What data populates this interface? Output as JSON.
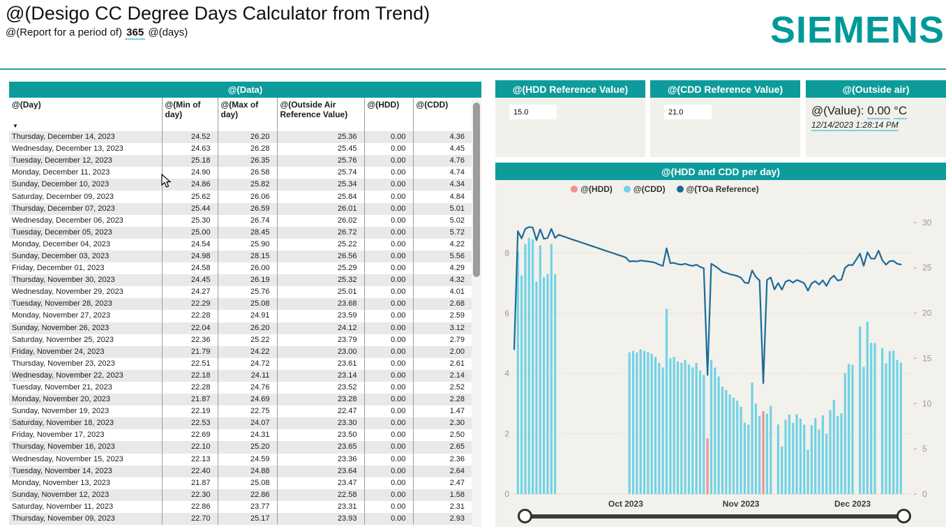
{
  "header": {
    "title": "@(Desigo CC Degree Days Calculator from Trend)",
    "report_period_prefix": "@(Report for a period of)",
    "report_period_value": "365",
    "report_period_suffix": "@(days)",
    "brand": "SIEMENS"
  },
  "colors": {
    "teal": "#0d9b9b",
    "brand_teal": "#009999",
    "hdd": "#f28f8f",
    "cdd": "#72d2e6",
    "toa_line": "#1a6a99"
  },
  "data_table": {
    "title": "@(Data)",
    "columns": [
      "@(Day)",
      "@(Min of day)",
      "@(Max of day)",
      "@(Outside Air Reference Value)",
      "@(HDD)",
      "@(CDD)"
    ],
    "sorted_column": "@(Day)",
    "rows": [
      [
        "Thursday, December 14, 2023",
        "24.52",
        "26.20",
        "25.36",
        "0.00",
        "4.36"
      ],
      [
        "Wednesday, December 13, 2023",
        "24.63",
        "26.28",
        "25.45",
        "0.00",
        "4.45"
      ],
      [
        "Tuesday, December 12, 2023",
        "25.18",
        "26.35",
        "25.76",
        "0.00",
        "4.76"
      ],
      [
        "Monday, December 11, 2023",
        "24.90",
        "26.58",
        "25.74",
        "0.00",
        "4.74"
      ],
      [
        "Sunday, December 10, 2023",
        "24.86",
        "25.82",
        "25.34",
        "0.00",
        "4.34"
      ],
      [
        "Saturday, December 09, 2023",
        "25.62",
        "26.06",
        "25.84",
        "0.00",
        "4.84"
      ],
      [
        "Thursday, December 07, 2023",
        "25.44",
        "26.59",
        "26.01",
        "0.00",
        "5.01"
      ],
      [
        "Wednesday, December 06, 2023",
        "25.30",
        "26.74",
        "26.02",
        "0.00",
        "5.02"
      ],
      [
        "Tuesday, December 05, 2023",
        "25.00",
        "28.45",
        "26.72",
        "0.00",
        "5.72"
      ],
      [
        "Monday, December 04, 2023",
        "24.54",
        "25.90",
        "25.22",
        "0.00",
        "4.22"
      ],
      [
        "Sunday, December 03, 2023",
        "24.98",
        "28.15",
        "26.56",
        "0.00",
        "5.56"
      ],
      [
        "Friday, December 01, 2023",
        "24.58",
        "26.00",
        "25.29",
        "0.00",
        "4.29"
      ],
      [
        "Thursday, November 30, 2023",
        "24.45",
        "26.19",
        "25.32",
        "0.00",
        "4.32"
      ],
      [
        "Wednesday, November 29, 2023",
        "24.27",
        "25.76",
        "25.01",
        "0.00",
        "4.01"
      ],
      [
        "Tuesday, November 28, 2023",
        "22.29",
        "25.08",
        "23.68",
        "0.00",
        "2.68"
      ],
      [
        "Monday, November 27, 2023",
        "22.28",
        "24.91",
        "23.59",
        "0.00",
        "2.59"
      ],
      [
        "Sunday, November 26, 2023",
        "22.04",
        "26.20",
        "24.12",
        "0.00",
        "3.12"
      ],
      [
        "Saturday, November 25, 2023",
        "22.36",
        "25.22",
        "23.79",
        "0.00",
        "2.79"
      ],
      [
        "Friday, November 24, 2023",
        "21.79",
        "24.22",
        "23.00",
        "0.00",
        "2.00"
      ],
      [
        "Thursday, November 23, 2023",
        "22.51",
        "24.72",
        "23.61",
        "0.00",
        "2.61"
      ],
      [
        "Wednesday, November 22, 2023",
        "22.18",
        "24.11",
        "23.14",
        "0.00",
        "2.14"
      ],
      [
        "Tuesday, November 21, 2023",
        "22.28",
        "24.76",
        "23.52",
        "0.00",
        "2.52"
      ],
      [
        "Monday, November 20, 2023",
        "21.87",
        "24.69",
        "23.28",
        "0.00",
        "2.28"
      ],
      [
        "Sunday, November 19, 2023",
        "22.19",
        "22.75",
        "22.47",
        "0.00",
        "1.47"
      ],
      [
        "Saturday, November 18, 2023",
        "22.53",
        "24.07",
        "23.30",
        "0.00",
        "2.30"
      ],
      [
        "Friday, November 17, 2023",
        "22.69",
        "24.31",
        "23.50",
        "0.00",
        "2.50"
      ],
      [
        "Thursday, November 16, 2023",
        "22.10",
        "25.20",
        "23.65",
        "0.00",
        "2.65"
      ],
      [
        "Wednesday, November 15, 2023",
        "22.13",
        "24.59",
        "23.36",
        "0.00",
        "2.36"
      ],
      [
        "Tuesday, November 14, 2023",
        "22.40",
        "24.88",
        "23.64",
        "0.00",
        "2.64"
      ],
      [
        "Monday, November 13, 2023",
        "21.87",
        "25.08",
        "23.47",
        "0.00",
        "2.47"
      ],
      [
        "Sunday, November 12, 2023",
        "22.30",
        "22.86",
        "22.58",
        "0.00",
        "1.58"
      ],
      [
        "Saturday, November 11, 2023",
        "22.86",
        "23.77",
        "23.31",
        "0.00",
        "2.31"
      ],
      [
        "Thursday, November 09, 2023",
        "22.70",
        "25.17",
        "23.93",
        "0.00",
        "2.93"
      ]
    ]
  },
  "hdd_panel": {
    "title": "@(HDD Reference Value)",
    "value": "15.0"
  },
  "cdd_panel": {
    "title": "@(CDD Reference Value)",
    "value": "21.0"
  },
  "outside_air_panel": {
    "title": "@(Outside air)",
    "value_label": "@(Value):",
    "value": "0.00",
    "unit": "°C",
    "timestamp": "12/14/2023 1:28:14 PM"
  },
  "chart_panel": {
    "title": "@(HDD and CDD per day)",
    "legend": [
      {
        "label": "@(HDD)",
        "color": "#f28f8f"
      },
      {
        "label": "@(CDD)",
        "color": "#72d2e6"
      },
      {
        "label": "@(TOa Reference)",
        "color": "#1a6a99"
      }
    ]
  },
  "chart_data": {
    "type": "combo",
    "x_axis": {
      "start_date": "2023-09-01",
      "end_date": "2023-12-14",
      "tick_labels": [
        "Oct 2023",
        "Nov 2023",
        "Dec 2023"
      ],
      "tick_day_indices": [
        30,
        61,
        91
      ]
    },
    "left_axis": {
      "ticks": [
        0,
        2,
        4,
        6,
        8
      ],
      "max": 9.4
    },
    "right_axis": {
      "ticks": [
        0,
        5,
        10,
        15,
        20,
        25,
        30
      ],
      "max": 31.3
    },
    "grid": "dotted-horizontal",
    "legend_position": "top",
    "series": [
      {
        "name": "@(HDD)",
        "type": "bar",
        "axis": "left",
        "color": "#f28f8f",
        "points_by_day_index": {
          "52": 1.85,
          "67": 2.75
        }
      },
      {
        "name": "@(CDD)",
        "type": "bar",
        "axis": "left",
        "color": "#72d2e6",
        "values": [
          null,
          8.05,
          7.25,
          8.3,
          8.5,
          8.45,
          7.05,
          8.25,
          7.2,
          7.3,
          8.3,
          7.3,
          null,
          null,
          null,
          null,
          null,
          null,
          null,
          null,
          null,
          null,
          null,
          null,
          null,
          null,
          null,
          null,
          null,
          null,
          null,
          4.7,
          4.75,
          4.7,
          4.8,
          4.75,
          4.7,
          4.65,
          4.55,
          4.35,
          4.2,
          6.15,
          4.5,
          4.55,
          4.4,
          4.35,
          4.45,
          4.3,
          4.2,
          4.35,
          4.1,
          3.95,
          null,
          4.45,
          4.2,
          3.9,
          3.56,
          3.45,
          3.3,
          3.2,
          3.1,
          2.9,
          2.37,
          2.3,
          3.7,
          3.0,
          2.6,
          null,
          2.67,
          2.93,
          null,
          2.31,
          1.58,
          2.47,
          2.64,
          2.36,
          2.65,
          2.5,
          2.3,
          1.47,
          2.28,
          2.52,
          2.14,
          2.61,
          2.0,
          2.79,
          3.12,
          2.59,
          2.68,
          4.01,
          4.32,
          4.29,
          null,
          5.56,
          4.22,
          5.72,
          5.02,
          5.01,
          null,
          4.84,
          4.34,
          4.74,
          4.76,
          4.45,
          4.36
        ]
      },
      {
        "name": "@(TOa Reference)",
        "type": "line",
        "axis": "right",
        "color": "#1a6a99",
        "values": [
          16.0,
          29.05,
          28.25,
          29.3,
          29.5,
          29.45,
          28.05,
          29.25,
          28.2,
          28.3,
          29.3,
          28.3,
          28.65,
          28.5,
          28.36,
          28.22,
          28.08,
          27.95,
          27.81,
          27.67,
          27.53,
          27.39,
          27.25,
          27.11,
          26.97,
          26.83,
          26.7,
          26.56,
          26.42,
          26.28,
          26.14,
          25.7,
          25.75,
          25.7,
          25.8,
          25.75,
          25.7,
          25.65,
          25.55,
          25.35,
          25.2,
          27.15,
          25.5,
          25.55,
          25.4,
          25.35,
          25.45,
          25.3,
          25.2,
          25.35,
          25.1,
          24.95,
          13.15,
          25.45,
          25.2,
          24.9,
          24.56,
          24.45,
          24.3,
          24.2,
          24.1,
          23.9,
          23.37,
          23.3,
          24.7,
          24.0,
          23.6,
          12.25,
          23.67,
          23.93,
          22.6,
          23.31,
          22.58,
          23.47,
          23.64,
          23.36,
          23.65,
          23.5,
          23.3,
          22.47,
          23.28,
          23.52,
          23.14,
          23.61,
          23.0,
          23.79,
          24.12,
          23.59,
          23.68,
          25.01,
          25.32,
          25.29,
          25.9,
          26.56,
          25.22,
          26.72,
          26.02,
          26.01,
          26.9,
          25.84,
          25.34,
          25.74,
          25.76,
          25.45,
          25.36
        ]
      }
    ]
  }
}
